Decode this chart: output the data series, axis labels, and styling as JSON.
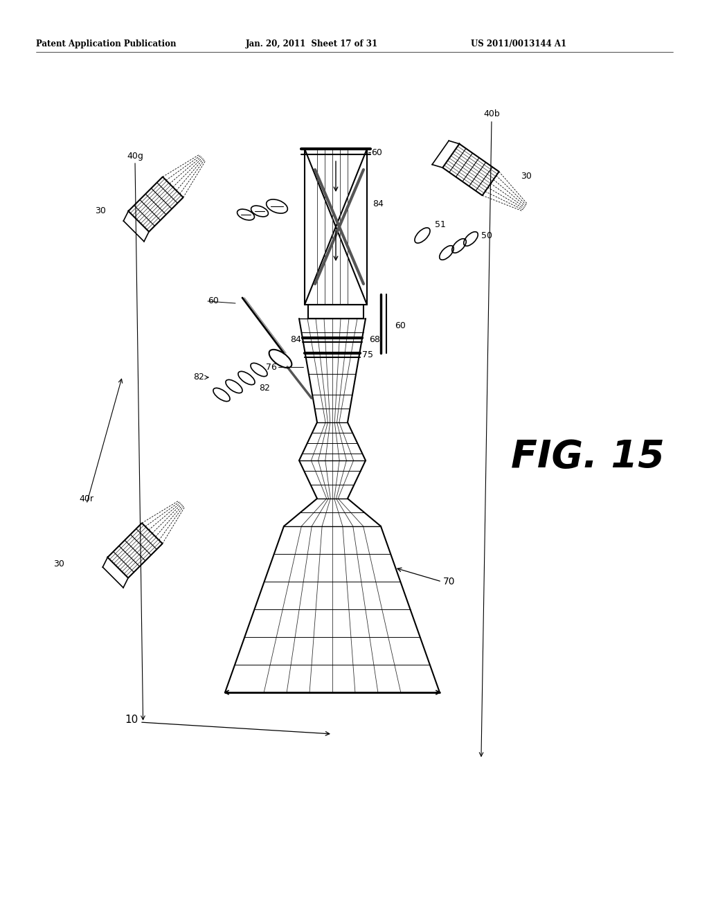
{
  "bg_color": "#ffffff",
  "header_left": "Patent Application Publication",
  "header_mid": "Jan. 20, 2011  Sheet 17 of 31",
  "header_right": "US 2011/0013144 A1",
  "fig_label": "FIG. 15",
  "label_10": "10",
  "label_30a": "30",
  "label_30b": "30",
  "label_30c": "30",
  "label_40g": "40g",
  "label_40b": "40b",
  "label_40r": "40r",
  "label_50": "50",
  "label_51": "51",
  "label_60a": "60",
  "label_60b": "60",
  "label_60c": "60",
  "label_68": "68",
  "label_70": "70",
  "label_75": "75",
  "label_76": "76",
  "label_82": "82",
  "label_84a": "84",
  "label_84b": "84"
}
